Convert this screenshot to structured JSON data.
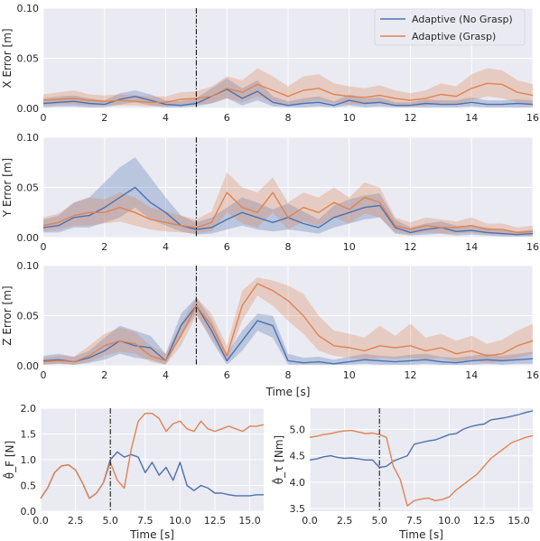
{
  "colors": {
    "no_grasp": "#4c72b0",
    "grasp": "#dd8452",
    "panel_bg": "#eaeaf2",
    "grid": "#ffffff"
  },
  "chart_data": [
    {
      "type": "line",
      "ylabel": "X Error [m]",
      "xlabel": "",
      "xlim": [
        0,
        16
      ],
      "ylim": [
        0,
        0.1
      ],
      "xticks": [
        "0",
        "2",
        "4",
        "6",
        "8",
        "10",
        "12",
        "14",
        "16"
      ],
      "yticks": [
        "0.00",
        "0.05",
        "0.10"
      ],
      "vline_x": 5,
      "grid": true,
      "legend": {
        "placement": "top-right",
        "entries": [
          "Adaptive (No Grasp)",
          "Adaptive (Grasp)"
        ]
      },
      "x": [
        0,
        0.5,
        1,
        1.5,
        2,
        2.5,
        3,
        3.5,
        4,
        4.5,
        5,
        5.5,
        6,
        6.5,
        7,
        7.5,
        8,
        8.5,
        9,
        9.5,
        10,
        10.5,
        11,
        11.5,
        12,
        12.5,
        13,
        13.5,
        14,
        14.5,
        15,
        15.5,
        16
      ],
      "series": [
        {
          "name": "Adaptive (No Grasp)",
          "color_key": "no_grasp",
          "values": [
            0.005,
            0.006,
            0.007,
            0.005,
            0.004,
            0.009,
            0.012,
            0.008,
            0.004,
            0.003,
            0.005,
            0.012,
            0.019,
            0.01,
            0.017,
            0.006,
            0.003,
            0.005,
            0.006,
            0.003,
            0.008,
            0.005,
            0.006,
            0.003,
            0.003,
            0.005,
            0.004,
            0.004,
            0.006,
            0.004,
            0.004,
            0.005,
            0.004
          ],
          "lower": [
            0.001,
            0.002,
            0.002,
            0.001,
            0.001,
            0.004,
            0.006,
            0.003,
            0.001,
            0.001,
            0.002,
            0.005,
            0.01,
            0.003,
            0.008,
            0.002,
            0.001,
            0.001,
            0.002,
            0.001,
            0.003,
            0.001,
            0.002,
            0.001,
            0.001,
            0.001,
            0.001,
            0.001,
            0.002,
            0.001,
            0.001,
            0.001,
            0.001
          ],
          "upper": [
            0.01,
            0.012,
            0.013,
            0.01,
            0.008,
            0.015,
            0.018,
            0.014,
            0.008,
            0.007,
            0.01,
            0.02,
            0.03,
            0.02,
            0.028,
            0.012,
            0.007,
            0.01,
            0.012,
            0.007,
            0.014,
            0.01,
            0.011,
            0.006,
            0.006,
            0.009,
            0.008,
            0.008,
            0.011,
            0.008,
            0.008,
            0.009,
            0.008
          ]
        },
        {
          "name": "Adaptive (Grasp)",
          "color_key": "grasp",
          "values": [
            0.008,
            0.009,
            0.01,
            0.008,
            0.007,
            0.008,
            0.007,
            0.006,
            0.006,
            0.009,
            0.01,
            0.012,
            0.02,
            0.016,
            0.024,
            0.018,
            0.012,
            0.018,
            0.02,
            0.014,
            0.012,
            0.011,
            0.013,
            0.01,
            0.008,
            0.01,
            0.014,
            0.012,
            0.02,
            0.025,
            0.024,
            0.016,
            0.013
          ],
          "lower": [
            0.003,
            0.004,
            0.004,
            0.003,
            0.003,
            0.003,
            0.003,
            0.002,
            0.002,
            0.004,
            0.004,
            0.005,
            0.01,
            0.006,
            0.012,
            0.006,
            0.004,
            0.006,
            0.008,
            0.005,
            0.004,
            0.004,
            0.005,
            0.003,
            0.003,
            0.003,
            0.005,
            0.004,
            0.008,
            0.012,
            0.01,
            0.006,
            0.004
          ],
          "upper": [
            0.014,
            0.016,
            0.018,
            0.014,
            0.013,
            0.014,
            0.013,
            0.012,
            0.012,
            0.016,
            0.017,
            0.022,
            0.032,
            0.028,
            0.04,
            0.032,
            0.022,
            0.032,
            0.034,
            0.025,
            0.022,
            0.02,
            0.023,
            0.018,
            0.015,
            0.018,
            0.025,
            0.022,
            0.034,
            0.04,
            0.038,
            0.028,
            0.024
          ]
        }
      ]
    },
    {
      "type": "line",
      "ylabel": "Y Error [m]",
      "xlabel": "",
      "xlim": [
        0,
        16
      ],
      "ylim": [
        0,
        0.1
      ],
      "xticks": [
        "0",
        "2",
        "4",
        "6",
        "8",
        "10",
        "12",
        "14",
        "16"
      ],
      "yticks": [
        "0.00",
        "0.05",
        "0.10"
      ],
      "vline_x": 5,
      "grid": true,
      "x": [
        0,
        0.5,
        1,
        1.5,
        2,
        2.5,
        3,
        3.5,
        4,
        4.5,
        5,
        5.5,
        6,
        6.5,
        7,
        7.5,
        8,
        8.5,
        9,
        9.5,
        10,
        10.5,
        11,
        11.5,
        12,
        12.5,
        13,
        13.5,
        14,
        14.5,
        15,
        15.5,
        16
      ],
      "series": [
        {
          "name": "Adaptive (No Grasp)",
          "color_key": "no_grasp",
          "values": [
            0.01,
            0.012,
            0.02,
            0.022,
            0.03,
            0.04,
            0.05,
            0.035,
            0.025,
            0.012,
            0.008,
            0.01,
            0.018,
            0.025,
            0.02,
            0.015,
            0.02,
            0.014,
            0.01,
            0.02,
            0.025,
            0.03,
            0.032,
            0.01,
            0.005,
            0.008,
            0.01,
            0.006,
            0.007,
            0.005,
            0.004,
            0.003,
            0.004
          ],
          "lower": [
            0.005,
            0.005,
            0.01,
            0.01,
            0.015,
            0.02,
            0.03,
            0.018,
            0.012,
            0.006,
            0.003,
            0.004,
            0.008,
            0.012,
            0.008,
            0.006,
            0.008,
            0.006,
            0.004,
            0.01,
            0.014,
            0.018,
            0.02,
            0.004,
            0.002,
            0.003,
            0.004,
            0.002,
            0.003,
            0.002,
            0.001,
            0.001,
            0.001
          ],
          "upper": [
            0.018,
            0.022,
            0.035,
            0.04,
            0.055,
            0.07,
            0.08,
            0.06,
            0.04,
            0.022,
            0.015,
            0.02,
            0.03,
            0.04,
            0.035,
            0.028,
            0.034,
            0.026,
            0.018,
            0.032,
            0.038,
            0.042,
            0.044,
            0.018,
            0.01,
            0.014,
            0.016,
            0.012,
            0.012,
            0.01,
            0.008,
            0.006,
            0.008
          ]
        },
        {
          "name": "Adaptive (Grasp)",
          "color_key": "grasp",
          "values": [
            0.012,
            0.015,
            0.022,
            0.025,
            0.025,
            0.03,
            0.025,
            0.018,
            0.015,
            0.012,
            0.01,
            0.015,
            0.045,
            0.03,
            0.025,
            0.045,
            0.02,
            0.03,
            0.025,
            0.035,
            0.028,
            0.04,
            0.035,
            0.012,
            0.008,
            0.012,
            0.01,
            0.01,
            0.012,
            0.008,
            0.008,
            0.005,
            0.006
          ],
          "lower": [
            0.006,
            0.008,
            0.012,
            0.012,
            0.014,
            0.016,
            0.012,
            0.008,
            0.006,
            0.005,
            0.004,
            0.006,
            0.025,
            0.014,
            0.01,
            0.025,
            0.008,
            0.016,
            0.012,
            0.02,
            0.014,
            0.024,
            0.02,
            0.005,
            0.003,
            0.005,
            0.004,
            0.004,
            0.005,
            0.003,
            0.003,
            0.002,
            0.002
          ],
          "upper": [
            0.02,
            0.024,
            0.035,
            0.04,
            0.038,
            0.045,
            0.04,
            0.03,
            0.026,
            0.022,
            0.018,
            0.026,
            0.065,
            0.05,
            0.045,
            0.06,
            0.035,
            0.045,
            0.04,
            0.05,
            0.04,
            0.055,
            0.05,
            0.02,
            0.015,
            0.02,
            0.018,
            0.016,
            0.02,
            0.014,
            0.014,
            0.01,
            0.012
          ]
        }
      ]
    },
    {
      "type": "line",
      "ylabel": "Z Error [m]",
      "xlabel": "Time [s]",
      "xlim": [
        0,
        16
      ],
      "ylim": [
        0,
        0.1
      ],
      "xticks": [
        "0",
        "2",
        "4",
        "6",
        "8",
        "10",
        "12",
        "14",
        "16"
      ],
      "yticks": [
        "0.00",
        "0.05",
        "0.10"
      ],
      "vline_x": 5,
      "grid": true,
      "x": [
        0,
        0.5,
        1,
        1.5,
        2,
        2.5,
        3,
        3.5,
        4,
        4.5,
        5,
        5.5,
        6,
        6.5,
        7,
        7.5,
        8,
        8.5,
        9,
        9.5,
        10,
        10.5,
        11,
        11.5,
        12,
        12.5,
        13,
        13.5,
        14,
        14.5,
        15,
        15.5,
        16
      ],
      "series": [
        {
          "name": "Adaptive (No Grasp)",
          "color_key": "no_grasp",
          "values": [
            0.005,
            0.006,
            0.004,
            0.008,
            0.015,
            0.025,
            0.02,
            0.018,
            0.005,
            0.04,
            0.06,
            0.035,
            0.005,
            0.025,
            0.045,
            0.04,
            0.005,
            0.003,
            0.004,
            0.002,
            0.004,
            0.006,
            0.005,
            0.004,
            0.005,
            0.006,
            0.004,
            0.003,
            0.005,
            0.006,
            0.005,
            0.006,
            0.007
          ],
          "lower": [
            0.001,
            0.002,
            0.001,
            0.003,
            0.006,
            0.012,
            0.008,
            0.006,
            0.001,
            0.03,
            0.052,
            0.025,
            0.001,
            0.015,
            0.035,
            0.028,
            0.001,
            0.001,
            0.001,
            0.001,
            0.001,
            0.002,
            0.001,
            0.001,
            0.001,
            0.002,
            0.001,
            0.001,
            0.001,
            0.002,
            0.001,
            0.002,
            0.002
          ],
          "upper": [
            0.01,
            0.012,
            0.009,
            0.015,
            0.028,
            0.04,
            0.035,
            0.03,
            0.012,
            0.052,
            0.068,
            0.046,
            0.012,
            0.035,
            0.052,
            0.05,
            0.012,
            0.008,
            0.009,
            0.006,
            0.009,
            0.012,
            0.01,
            0.009,
            0.011,
            0.012,
            0.009,
            0.008,
            0.01,
            0.012,
            0.01,
            0.012,
            0.014
          ]
        },
        {
          "name": "Adaptive (Grasp)",
          "color_key": "grasp",
          "values": [
            0.004,
            0.005,
            0.004,
            0.01,
            0.02,
            0.025,
            0.022,
            0.01,
            0.005,
            0.03,
            0.06,
            0.04,
            0.01,
            0.06,
            0.082,
            0.075,
            0.065,
            0.05,
            0.03,
            0.02,
            0.018,
            0.015,
            0.02,
            0.018,
            0.02,
            0.015,
            0.018,
            0.012,
            0.015,
            0.01,
            0.012,
            0.02,
            0.025
          ],
          "lower": [
            0.001,
            0.002,
            0.001,
            0.004,
            0.01,
            0.014,
            0.012,
            0.004,
            0.001,
            0.02,
            0.05,
            0.028,
            0.004,
            0.045,
            0.07,
            0.06,
            0.045,
            0.032,
            0.015,
            0.01,
            0.008,
            0.006,
            0.008,
            0.007,
            0.008,
            0.006,
            0.008,
            0.004,
            0.006,
            0.003,
            0.004,
            0.008,
            0.012
          ],
          "upper": [
            0.008,
            0.01,
            0.009,
            0.02,
            0.032,
            0.038,
            0.034,
            0.02,
            0.012,
            0.042,
            0.068,
            0.052,
            0.02,
            0.075,
            0.088,
            0.085,
            0.08,
            0.072,
            0.05,
            0.035,
            0.032,
            0.028,
            0.04,
            0.03,
            0.042,
            0.028,
            0.032,
            0.025,
            0.03,
            0.022,
            0.026,
            0.035,
            0.042
          ]
        }
      ]
    },
    {
      "type": "line",
      "ylabel": "θ̂_F [N]",
      "xlabel": "Time [s]",
      "xlim": [
        0,
        16
      ],
      "ylim": [
        0,
        2.0
      ],
      "xticks": [
        "0.0",
        "2.5",
        "5.0",
        "7.5",
        "10.0",
        "12.5",
        "15.0"
      ],
      "yticks": [
        "0.0",
        "0.5",
        "1.0",
        "1.5",
        "2.0"
      ],
      "vline_x": 5,
      "grid": true,
      "x": [
        0,
        0.5,
        1,
        1.5,
        2,
        2.5,
        3,
        3.5,
        4,
        4.5,
        5,
        5.5,
        6,
        6.5,
        7,
        7.5,
        8,
        8.5,
        9,
        9.5,
        10,
        10.5,
        11,
        11.5,
        12,
        12.5,
        13,
        13.5,
        14,
        14.5,
        15,
        15.5,
        16
      ],
      "series": [
        {
          "name": "Adaptive (No Grasp)",
          "color_key": "no_grasp",
          "values": [
            0.25,
            0.45,
            0.75,
            0.88,
            0.9,
            0.8,
            0.55,
            0.25,
            0.35,
            0.55,
            1.0,
            1.15,
            1.05,
            1.1,
            1.05,
            0.75,
            0.95,
            0.7,
            0.85,
            0.6,
            0.95,
            0.5,
            0.4,
            0.5,
            0.45,
            0.35,
            0.35,
            0.32,
            0.3,
            0.3,
            0.3,
            0.32,
            0.32
          ]
        },
        {
          "name": "Adaptive (Grasp)",
          "color_key": "grasp",
          "values": [
            0.25,
            0.45,
            0.75,
            0.88,
            0.9,
            0.8,
            0.55,
            0.25,
            0.35,
            0.55,
            0.95,
            0.6,
            0.45,
            1.2,
            1.75,
            1.9,
            1.9,
            1.8,
            1.55,
            1.7,
            1.75,
            1.6,
            1.55,
            1.75,
            1.6,
            1.55,
            1.6,
            1.65,
            1.6,
            1.55,
            1.65,
            1.65,
            1.68
          ]
        }
      ]
    },
    {
      "type": "line",
      "ylabel": "θ̂_τ [Nm]",
      "xlabel": "Time [s]",
      "xlim": [
        0,
        16
      ],
      "ylim": [
        3.45,
        5.4
      ],
      "xticks": [
        "0.0",
        "2.5",
        "5.0",
        "7.5",
        "10.0",
        "12.5",
        "15.0"
      ],
      "yticks": [
        "3.5",
        "4.0",
        "4.5",
        "5.0"
      ],
      "vline_x": 5,
      "grid": true,
      "x": [
        0,
        0.5,
        1,
        1.5,
        2,
        2.5,
        3,
        3.5,
        4,
        4.5,
        5,
        5.5,
        6,
        6.5,
        7,
        7.5,
        8,
        8.5,
        9,
        9.5,
        10,
        10.5,
        11,
        11.5,
        12,
        12.5,
        13,
        13.5,
        14,
        14.5,
        15,
        15.5,
        16
      ],
      "series": [
        {
          "name": "Adaptive (No Grasp)",
          "color_key": "no_grasp",
          "values": [
            4.42,
            4.44,
            4.48,
            4.5,
            4.47,
            4.45,
            4.46,
            4.44,
            4.42,
            4.42,
            4.28,
            4.3,
            4.4,
            4.45,
            4.5,
            4.72,
            4.75,
            4.78,
            4.8,
            4.85,
            4.9,
            4.92,
            5.0,
            5.05,
            5.08,
            5.1,
            5.18,
            5.2,
            5.22,
            5.25,
            5.28,
            5.32,
            5.35
          ]
        },
        {
          "name": "Adaptive (Grasp)",
          "color_key": "grasp",
          "values": [
            4.85,
            4.87,
            4.9,
            4.92,
            4.95,
            4.97,
            4.98,
            4.95,
            4.92,
            4.93,
            4.9,
            4.85,
            4.3,
            4.05,
            3.55,
            3.65,
            3.68,
            3.7,
            3.65,
            3.67,
            3.72,
            3.85,
            3.95,
            4.05,
            4.15,
            4.3,
            4.45,
            4.55,
            4.65,
            4.75,
            4.8,
            4.85,
            4.88
          ]
        }
      ]
    }
  ]
}
